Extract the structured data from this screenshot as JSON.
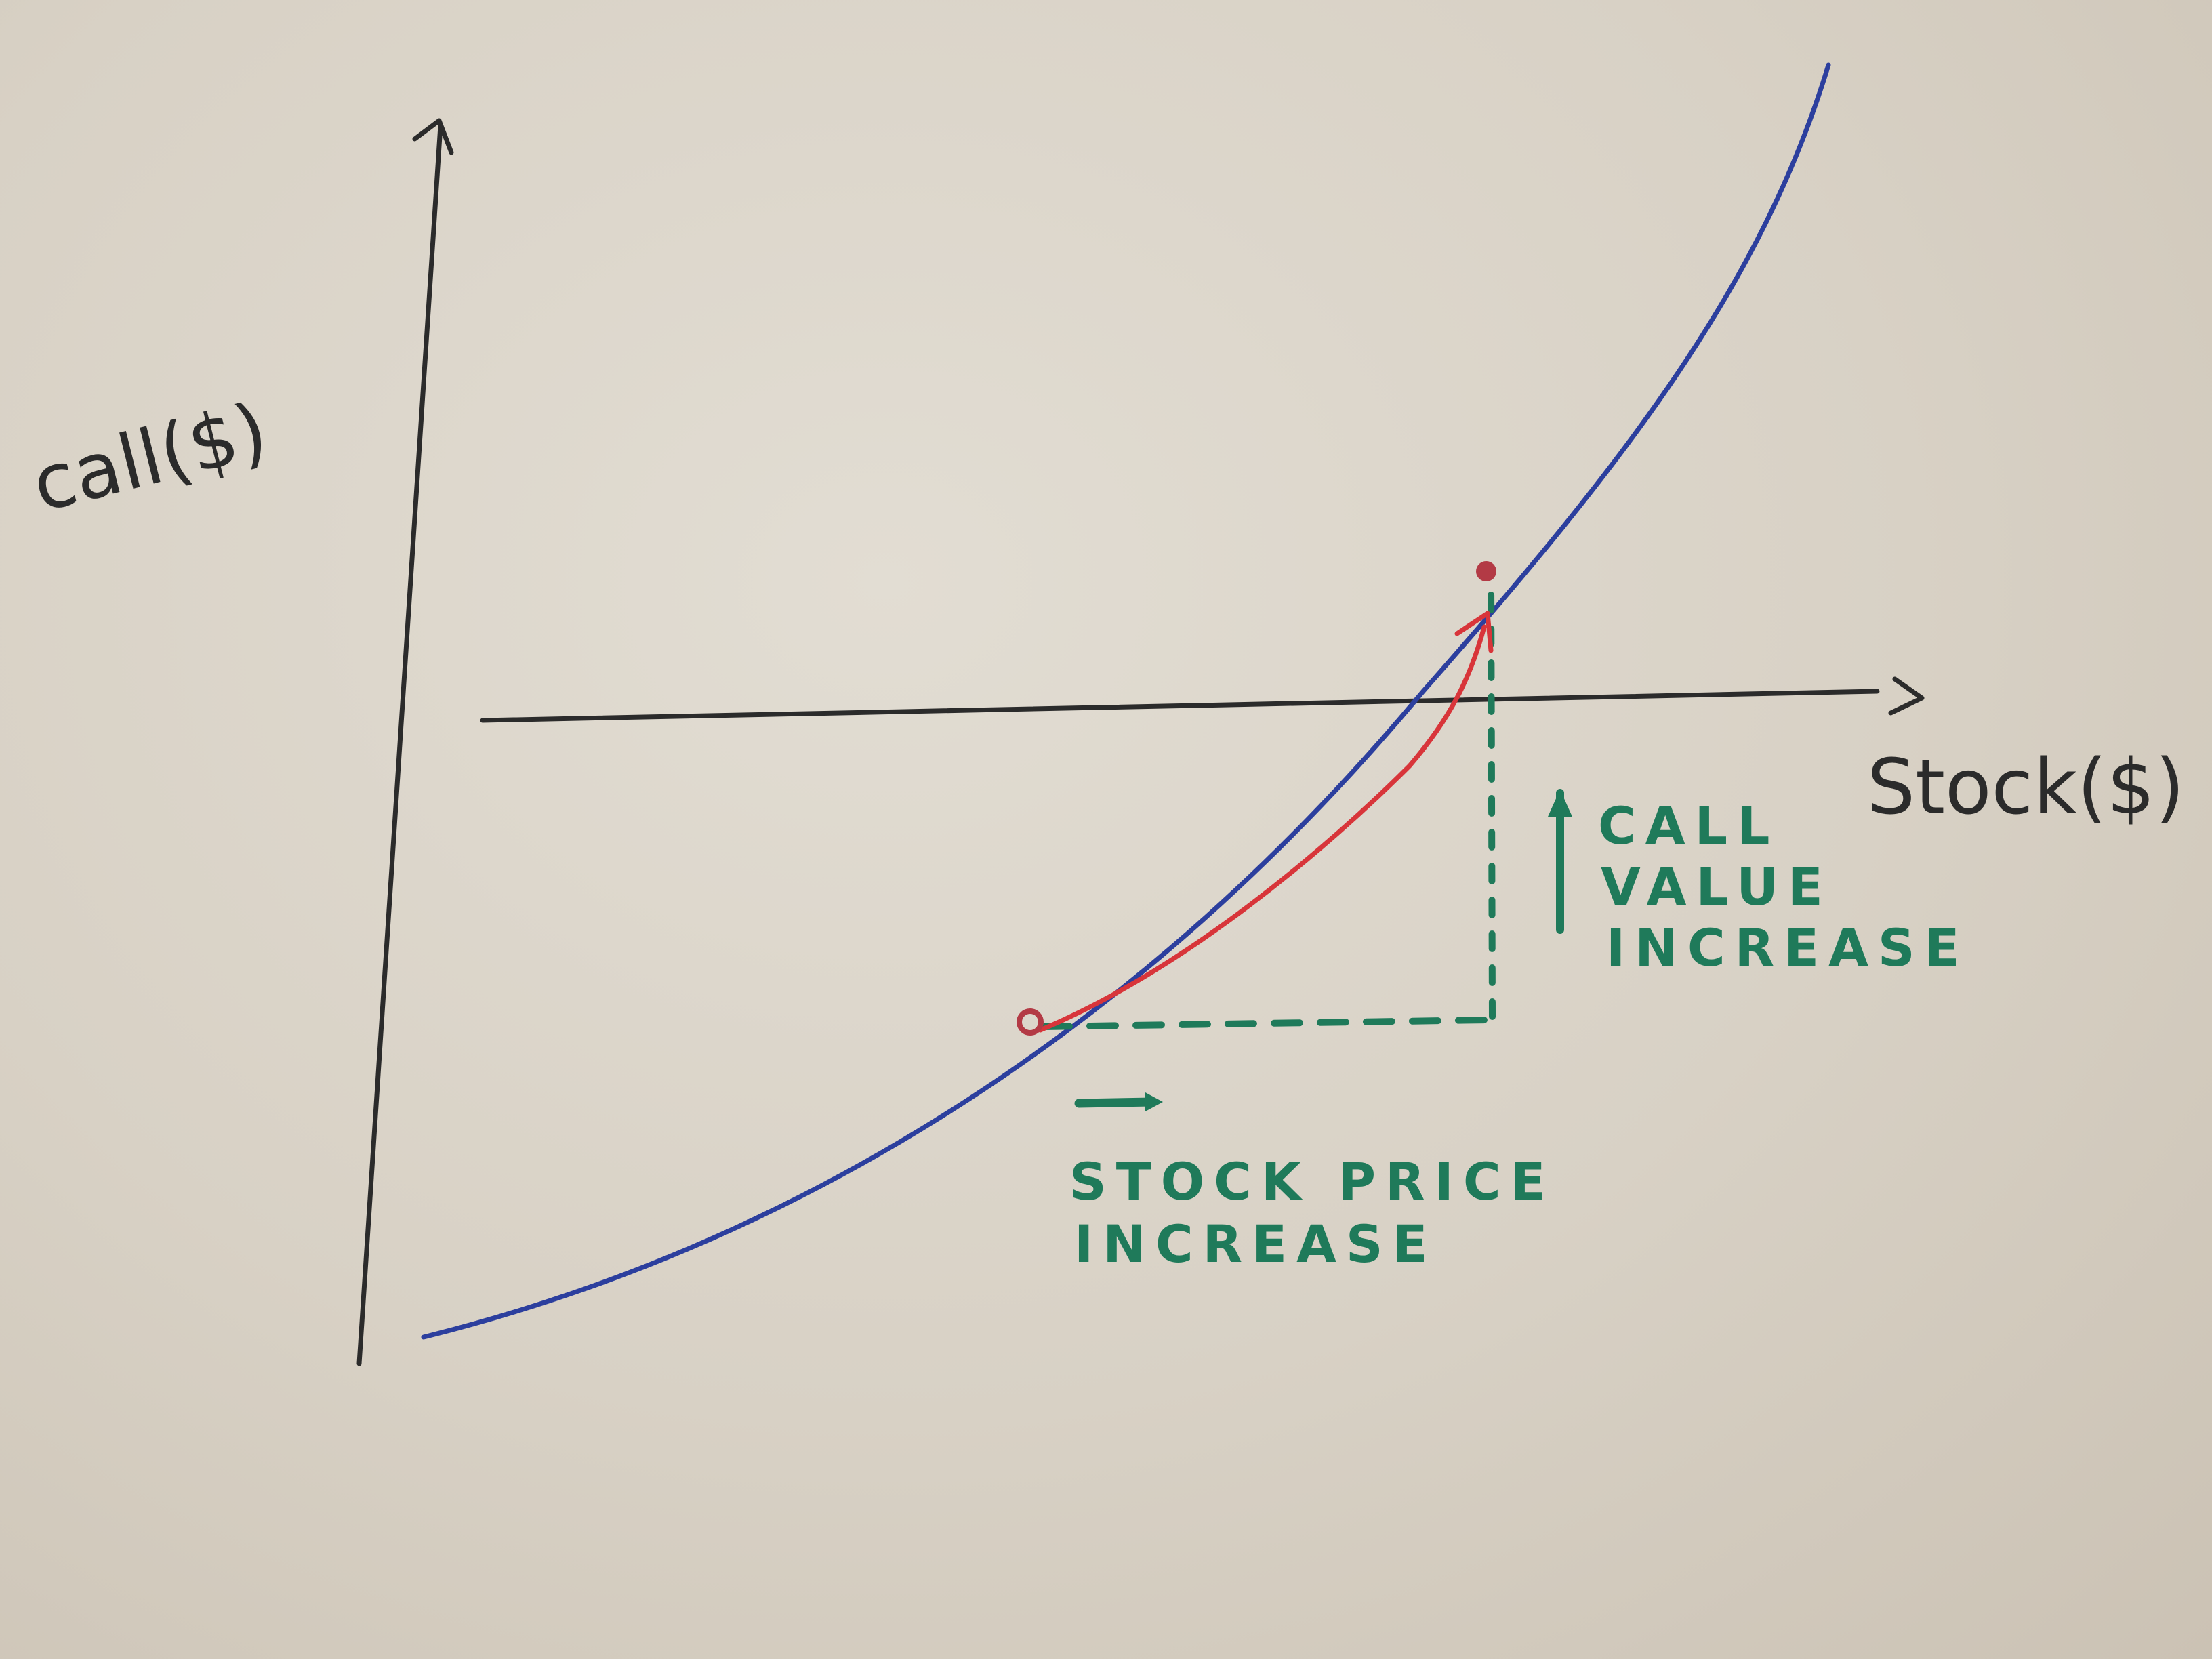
{
  "labels": {
    "y_axis": "call($)",
    "x_axis": "Stock($)",
    "call_value_lines": [
      "CALL",
      "VALUE",
      "INCREASE"
    ],
    "stock_price_lines": [
      "STOCK PRICE",
      "INCREASE"
    ]
  },
  "colors": {
    "axis": "#2b2b2b",
    "curve": "#2c3f9e",
    "move_arrow": "#d8353a",
    "annotation": "#1f7a5a",
    "point": "#b33a45"
  }
}
